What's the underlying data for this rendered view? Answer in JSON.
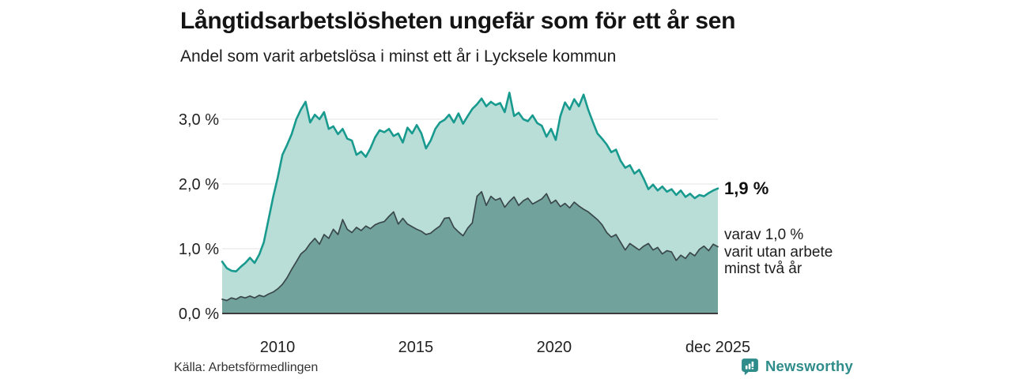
{
  "chart_data": {
    "type": "area",
    "title": "Långtidsarbetslösheten ungefär som för ett år sen",
    "subtitle": "Andel som varit arbetslösa i minst ett år i Lycksele kommun",
    "source": "Källa: Arbetsförmedlingen",
    "unit": "%",
    "grid_color": "#E3E3E3",
    "axis_color": "#3C3C3C",
    "x": {
      "start_year": 2008,
      "end_year": 2025.92,
      "step_months": 2,
      "ticks": [
        {
          "year": 2010,
          "label": "2010"
        },
        {
          "year": 2015,
          "label": "2015"
        },
        {
          "year": 2020,
          "label": "2020"
        },
        {
          "year": 2025.92,
          "label": "dec 2025"
        }
      ]
    },
    "y": {
      "min": 0,
      "max": 3.6,
      "ticks": [
        {
          "v": 0,
          "label": "0,0 %"
        },
        {
          "v": 1,
          "label": "1,0 %"
        },
        {
          "v": 2,
          "label": "2,0 %"
        },
        {
          "v": 3,
          "label": "3,0 %"
        }
      ]
    },
    "series": [
      {
        "id": "total",
        "name": "minst ett år",
        "line_color": "#189A8E",
        "fill_color": "#B9DDD7",
        "line_width": 2.6,
        "end_label": "1,9 %",
        "end_value": 1.9,
        "values": [
          0.8,
          0.7,
          0.66,
          0.65,
          0.72,
          0.78,
          0.86,
          0.78,
          0.91,
          1.1,
          1.45,
          1.8,
          2.1,
          2.45,
          2.6,
          2.77,
          3.0,
          3.15,
          3.27,
          2.95,
          3.07,
          3.0,
          3.11,
          2.85,
          2.89,
          2.77,
          2.85,
          2.7,
          2.67,
          2.45,
          2.5,
          2.42,
          2.55,
          2.72,
          2.83,
          2.8,
          2.85,
          2.74,
          2.78,
          2.64,
          2.87,
          2.78,
          2.91,
          2.78,
          2.55,
          2.67,
          2.85,
          2.95,
          2.99,
          3.07,
          2.95,
          3.09,
          2.93,
          3.05,
          3.16,
          3.23,
          3.32,
          3.2,
          3.27,
          3.22,
          3.25,
          3.11,
          3.41,
          3.05,
          3.1,
          3.0,
          2.97,
          3.06,
          2.94,
          2.9,
          2.73,
          2.85,
          2.68,
          3.05,
          3.26,
          3.15,
          3.31,
          3.2,
          3.38,
          3.15,
          2.96,
          2.78,
          2.7,
          2.61,
          2.49,
          2.53,
          2.36,
          2.25,
          2.29,
          2.16,
          2.22,
          2.08,
          1.92,
          1.99,
          1.9,
          1.96,
          1.88,
          1.92,
          1.83,
          1.9,
          1.8,
          1.85,
          1.78,
          1.83,
          1.81,
          1.86,
          1.9,
          1.93
        ]
      },
      {
        "id": "sub",
        "name": "minst två år",
        "line_color": "#3A484C",
        "fill_color": "#71A29C",
        "line_width": 1.7,
        "end_label_lines": [
          "varav 1,0 %",
          "varit utan arbete",
          "minst två år"
        ],
        "end_value": 1.0,
        "values": [
          0.22,
          0.2,
          0.24,
          0.22,
          0.26,
          0.24,
          0.27,
          0.24,
          0.28,
          0.26,
          0.3,
          0.33,
          0.38,
          0.45,
          0.55,
          0.68,
          0.8,
          0.92,
          0.98,
          1.08,
          1.16,
          1.07,
          1.22,
          1.16,
          1.3,
          1.22,
          1.45,
          1.3,
          1.25,
          1.33,
          1.28,
          1.35,
          1.31,
          1.37,
          1.4,
          1.42,
          1.5,
          1.57,
          1.38,
          1.47,
          1.38,
          1.34,
          1.3,
          1.27,
          1.22,
          1.24,
          1.3,
          1.35,
          1.47,
          1.48,
          1.33,
          1.26,
          1.2,
          1.32,
          1.4,
          1.81,
          1.88,
          1.67,
          1.81,
          1.75,
          1.78,
          1.64,
          1.73,
          1.8,
          1.67,
          1.74,
          1.78,
          1.69,
          1.73,
          1.77,
          1.85,
          1.7,
          1.75,
          1.65,
          1.7,
          1.63,
          1.72,
          1.66,
          1.61,
          1.57,
          1.51,
          1.45,
          1.37,
          1.25,
          1.18,
          1.22,
          1.1,
          0.98,
          1.08,
          1.03,
          0.98,
          1.04,
          1.08,
          0.98,
          1.02,
          0.92,
          0.97,
          0.95,
          0.82,
          0.9,
          0.85,
          0.94,
          0.89,
          0.99,
          1.04,
          0.97,
          1.07,
          1.03
        ]
      }
    ]
  },
  "footer": {
    "brand": "Newsworthy",
    "brand_color": "#2E8C8A"
  }
}
